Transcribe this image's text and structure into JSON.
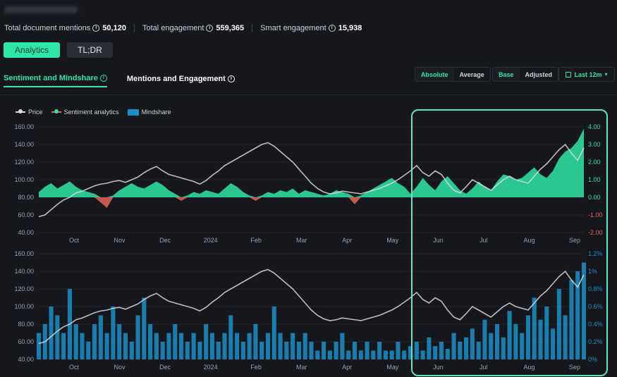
{
  "header": {
    "stats": [
      {
        "label": "Total document mentions",
        "value": "50,120"
      },
      {
        "label": "Total engagement",
        "value": "559,365"
      },
      {
        "label": "Smart engagement",
        "value": "15,938"
      }
    ]
  },
  "modes": {
    "analytics": "Analytics",
    "tldr": "TL;DR"
  },
  "tabs": {
    "sentiment": "Sentiment and Mindshare",
    "mentions": "Mentions and Engagement"
  },
  "controls": {
    "absolute": "Absolute",
    "average": "Average",
    "base": "Base",
    "adjusted": "Adjusted",
    "range": "Last 12m"
  },
  "icons": {
    "info": "info-icon",
    "calendar": "calendar-icon",
    "chevron": "chevron-down-icon"
  },
  "colors": {
    "accent": "#2ee6a6",
    "price": "#d9dbe0",
    "negative": "#e2645b",
    "mindshare": "#1a8fc7"
  },
  "chart_data": [
    {
      "type": "line",
      "legend": [
        "Price",
        "Sentiment analytics",
        "Mindshare"
      ],
      "x_ticks": [
        "Oct",
        "Nov",
        "Dec",
        "2024",
        "Feb",
        "Mar",
        "Apr",
        "May",
        "Jun",
        "Jul",
        "Aug",
        "Sep"
      ],
      "y_left_ticks": [
        "160.00",
        "140.00",
        "120.00",
        "100.00",
        "80.00",
        "60.00",
        "40.00"
      ],
      "y_left_range": [
        40,
        160
      ],
      "y_right_ticks": [
        "4.00",
        "3.00",
        "2.00",
        "1.00",
        "0.00",
        "-1.00",
        "-2.00"
      ],
      "y_right_range": [
        -2,
        4
      ],
      "series": [
        {
          "name": "Price",
          "values": [
            58,
            60,
            66,
            72,
            77,
            80,
            85,
            87,
            90,
            93,
            95,
            96,
            98,
            99,
            97,
            100,
            103,
            108,
            112,
            115,
            110,
            106,
            104,
            102,
            100,
            98,
            95,
            99,
            105,
            110,
            116,
            120,
            124,
            128,
            132,
            136,
            140,
            142,
            138,
            132,
            126,
            120,
            112,
            104,
            96,
            90,
            86,
            84,
            85,
            87,
            86,
            85,
            84,
            86,
            88,
            90,
            93,
            96,
            100,
            105,
            110,
            116,
            108,
            104,
            110,
            106,
            96,
            88,
            85,
            92,
            100,
            96,
            92,
            88,
            94,
            100,
            104,
            100,
            98,
            96,
            104,
            112,
            118,
            126,
            134,
            140,
            130,
            122,
            136
          ]
        },
        {
          "name": "Sentiment analytics",
          "values": [
            0.3,
            0.6,
            0.8,
            0.5,
            0.7,
            0.9,
            0.6,
            0.4,
            0.3,
            0.2,
            -0.3,
            -0.6,
            0.1,
            0.4,
            0.6,
            0.8,
            0.6,
            0.5,
            0.7,
            0.9,
            0.7,
            0.4,
            0.2,
            -0.2,
            0.1,
            0.3,
            0.2,
            0.4,
            0.3,
            0.2,
            0.5,
            0.8,
            0.6,
            0.3,
            0.1,
            -0.2,
            0.1,
            0.3,
            0.2,
            0.4,
            0.3,
            0.5,
            0.2,
            0.4,
            0.3,
            0.2,
            0.1,
            0.2,
            0.4,
            0.3,
            0.2,
            -0.4,
            0.1,
            0.3,
            0.5,
            0.7,
            0.9,
            1.1,
            0.8,
            0.6,
            0.2,
            0.6,
            1.1,
            0.7,
            0.4,
            0.9,
            1.2,
            0.8,
            0.4,
            0.2,
            0.5,
            0.9,
            0.6,
            0.4,
            0.9,
            1.3,
            1.2,
            1.0,
            1.1,
            1.4,
            1.7,
            1.3,
            1.1,
            1.5,
            2.2,
            2.6,
            2.8,
            3.2,
            3.9
          ]
        }
      ]
    },
    {
      "type": "bar",
      "legend": [
        "Price",
        "Mindshare"
      ],
      "x_ticks": [
        "Oct",
        "Nov",
        "Dec",
        "2024",
        "Feb",
        "Mar",
        "Apr",
        "May",
        "Jun",
        "Jul",
        "Aug",
        "Sep"
      ],
      "y_left_ticks": [
        "160.00",
        "140.00",
        "120.00",
        "100.00",
        "80.00",
        "60.00",
        "40.00"
      ],
      "y_left_range": [
        40,
        160
      ],
      "y_right_ticks": [
        "1.2%",
        "1%",
        "0.8%",
        "0.6%",
        "0.4%",
        "0.2%",
        "0%"
      ],
      "y_right_range": [
        0,
        1.2
      ],
      "series": [
        {
          "name": "Mindshare",
          "values": [
            0.3,
            0.4,
            0.6,
            0.5,
            0.3,
            0.8,
            0.4,
            0.3,
            0.2,
            0.4,
            0.5,
            0.3,
            0.6,
            0.4,
            0.3,
            0.2,
            0.5,
            0.7,
            0.4,
            0.3,
            0.2,
            0.3,
            0.4,
            0.3,
            0.2,
            0.3,
            0.2,
            0.4,
            0.3,
            0.2,
            0.3,
            0.5,
            0.3,
            0.2,
            0.3,
            0.4,
            0.2,
            0.3,
            0.6,
            0.3,
            0.2,
            0.3,
            0.2,
            0.3,
            0.2,
            0.1,
            0.2,
            0.1,
            0.2,
            0.3,
            0.1,
            0.2,
            0.1,
            0.2,
            0.1,
            0.2,
            0.1,
            0.1,
            0.2,
            0.1,
            0.15,
            0.2,
            0.1,
            0.25,
            0.15,
            0.2,
            0.12,
            0.3,
            0.2,
            0.25,
            0.35,
            0.2,
            0.45,
            0.3,
            0.4,
            0.25,
            0.55,
            0.4,
            0.3,
            0.5,
            0.7,
            0.45,
            0.6,
            0.35,
            0.8,
            0.5,
            0.9,
            1.0,
            1.1
          ]
        }
      ]
    }
  ]
}
